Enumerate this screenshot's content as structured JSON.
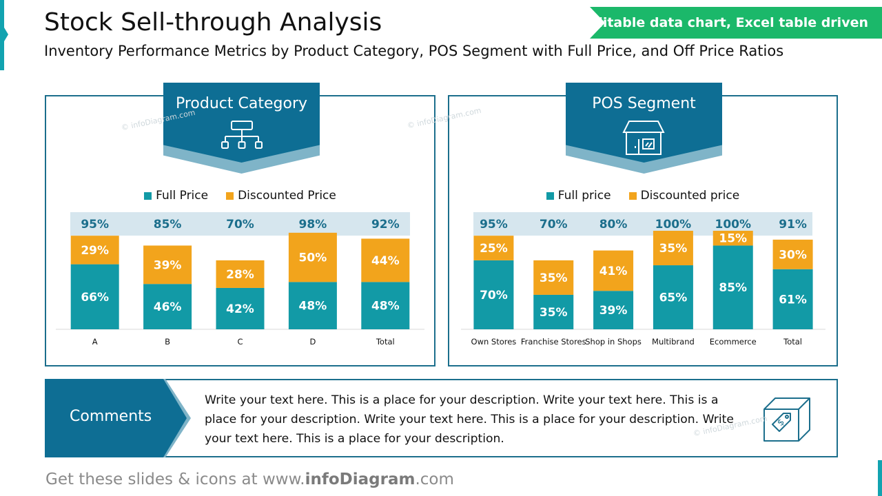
{
  "header": {
    "title": "Stock Sell-through Analysis",
    "subtitle": "Inventory Performance Metrics by Product Category, POS Segment with Full Price, and Off Price Ratios",
    "badge": "Editable data chart, Excel table driven"
  },
  "colors": {
    "full": "#129aa6",
    "discounted": "#f2a41c",
    "panel_border": "#1b6e8c",
    "banner": "#0e6e94",
    "total_band": "#d6e6ee",
    "total_text": "#1b6e8c"
  },
  "left_panel": {
    "title": "Product Category",
    "icon": "hierarchy-icon",
    "legend": [
      "Full Price",
      "Discounted Price"
    ]
  },
  "right_panel": {
    "title": "POS Segment",
    "icon": "store-icon",
    "legend": [
      "Full price",
      "Discounted price"
    ]
  },
  "chart_data": [
    {
      "type": "bar",
      "stacked": true,
      "categories": [
        "A",
        "B",
        "C",
        "D",
        "Total"
      ],
      "totals": [
        "95%",
        "85%",
        "70%",
        "98%",
        "92%"
      ],
      "series": [
        {
          "name": "Full Price",
          "values": [
            66,
            46,
            42,
            48,
            48
          ]
        },
        {
          "name": "Discounted Price",
          "values": [
            29,
            39,
            28,
            50,
            44
          ]
        }
      ]
    },
    {
      "type": "bar",
      "stacked": true,
      "categories": [
        "Own Stores",
        "Franchise Stores",
        "Shop in Shops",
        "Multibrand",
        "Ecommerce",
        "Total"
      ],
      "totals": [
        "95%",
        "70%",
        "80%",
        "100%",
        "100%",
        "91%"
      ],
      "series": [
        {
          "name": "Full price",
          "values": [
            70,
            35,
            39,
            65,
            85,
            61
          ]
        },
        {
          "name": "Discounted price",
          "values": [
            25,
            35,
            41,
            35,
            15,
            30
          ]
        }
      ]
    }
  ],
  "comments": {
    "label": "Comments",
    "text": "Write your text here. This is a place for your description. Write your text here. This is a place for your description. Write your text here. This is a place for your description. Write your text here. This is a place for your description.",
    "icon": "price-tag-box-icon"
  },
  "footer": {
    "prefix": "Get these slides & icons at www.",
    "brand": "infoDiagram",
    "suffix": ".com"
  },
  "watermark": "© infoDiagram.com"
}
